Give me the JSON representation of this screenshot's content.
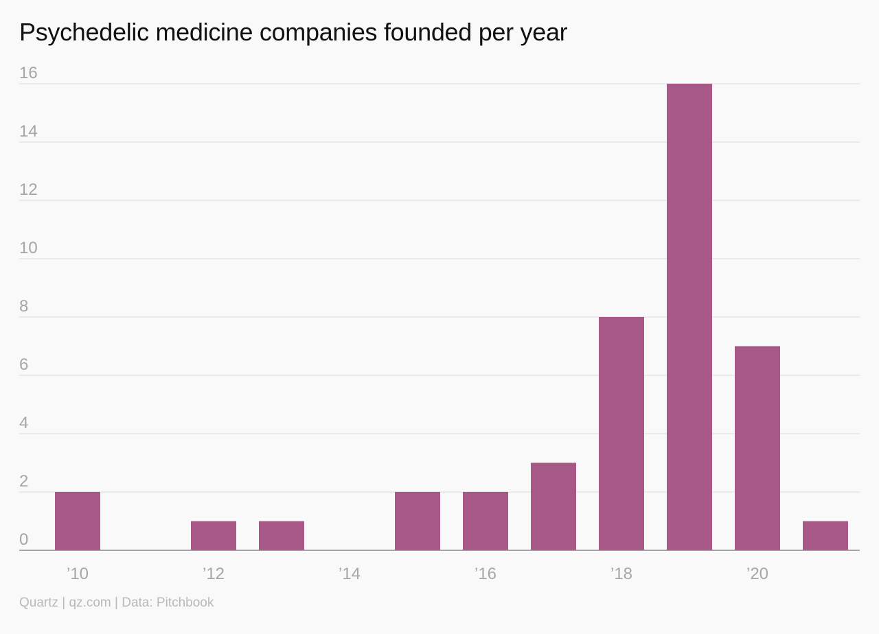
{
  "title": "Psychedelic medicine companies founded per year",
  "source": "Quartz | qz.com | Data: Pitchbook",
  "colors": {
    "bar": "#a85886",
    "grid": "#e2e2e2",
    "axis": "#8a8a8a",
    "tick_text": "#a6a6a6",
    "background": "#f9f9f9"
  },
  "chart_data": {
    "type": "bar",
    "categories": [
      "2010",
      "2011",
      "2012",
      "2013",
      "2014",
      "2015",
      "2016",
      "2017",
      "2018",
      "2019",
      "2020",
      "2021"
    ],
    "values": [
      2,
      0,
      1,
      1,
      0,
      2,
      2,
      3,
      8,
      16,
      7,
      1
    ],
    "x_tick_labels": [
      "’10",
      "’12",
      "’14",
      "’16",
      "’18",
      "’20"
    ],
    "x_tick_categories": [
      "2010",
      "2012",
      "2014",
      "2016",
      "2018",
      "2020"
    ],
    "y_ticks": [
      0,
      2,
      4,
      6,
      8,
      10,
      12,
      14,
      16
    ],
    "ylim": [
      0,
      16
    ],
    "grid": true,
    "legend": "none"
  }
}
